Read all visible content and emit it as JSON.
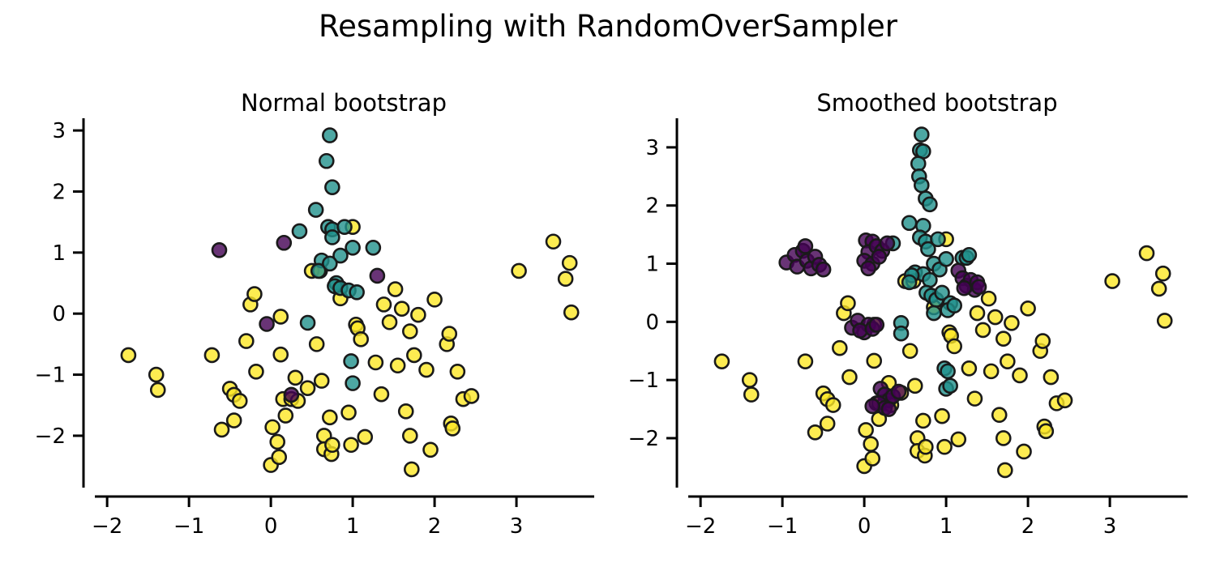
{
  "figure": {
    "suptitle": "Resampling with RandomOverSampler"
  },
  "colors": {
    "class_0": "#440154",
    "class_1": "#21918c",
    "class_2": "#fde725",
    "edge": "#1a1a1a"
  },
  "chart_data": [
    {
      "type": "scatter",
      "title": "Normal bootstrap",
      "xlabel": "",
      "ylabel": "",
      "xlim": [
        -2.15,
        3.95
      ],
      "ylim": [
        -2.85,
        3.2
      ],
      "xticks": [
        -2,
        -1,
        0,
        1,
        2,
        3
      ],
      "yticks": [
        -2,
        -1,
        0,
        1,
        2,
        3
      ],
      "xtick_labels": [
        "−2",
        "−1",
        "0",
        "1",
        "2",
        "3"
      ],
      "ytick_labels": [
        "−2",
        "−1",
        "0",
        "1",
        "2",
        "3"
      ],
      "grid": false,
      "legend": "none",
      "series": [
        {
          "class": 2,
          "color": "#fde725",
          "points": [
            [
              -1.74,
              -0.68
            ],
            [
              -1.4,
              -1.0
            ],
            [
              -1.38,
              -1.25
            ],
            [
              -0.72,
              -0.68
            ],
            [
              -0.6,
              -1.9
            ],
            [
              -0.5,
              -1.23
            ],
            [
              -0.45,
              -1.33
            ],
            [
              -0.38,
              -1.43
            ],
            [
              -0.45,
              -1.75
            ],
            [
              -0.3,
              -0.45
            ],
            [
              -0.25,
              0.15
            ],
            [
              -0.2,
              0.32
            ],
            [
              -0.18,
              -0.95
            ],
            [
              0.02,
              -1.86
            ],
            [
              0.0,
              -2.48
            ],
            [
              0.08,
              -2.1
            ],
            [
              0.1,
              -2.35
            ],
            [
              0.12,
              -0.67
            ],
            [
              0.12,
              -0.05
            ],
            [
              0.15,
              -1.4
            ],
            [
              0.18,
              -1.67
            ],
            [
              0.25,
              -1.4
            ],
            [
              0.3,
              -1.05
            ],
            [
              0.33,
              -1.43
            ],
            [
              0.45,
              -1.22
            ],
            [
              0.5,
              0.7
            ],
            [
              0.56,
              -0.5
            ],
            [
              0.6,
              0.7
            ],
            [
              0.62,
              -1.1
            ],
            [
              0.65,
              -2.0
            ],
            [
              0.65,
              -2.22
            ],
            [
              0.72,
              -1.7
            ],
            [
              0.74,
              -2.3
            ],
            [
              0.75,
              -2.15
            ],
            [
              0.85,
              0.25
            ],
            [
              0.95,
              -1.62
            ],
            [
              0.98,
              -2.15
            ],
            [
              1.0,
              1.42
            ],
            [
              1.04,
              -0.18
            ],
            [
              1.06,
              -0.24
            ],
            [
              1.1,
              -0.42
            ],
            [
              1.15,
              -2.02
            ],
            [
              1.28,
              -0.8
            ],
            [
              1.35,
              -1.32
            ],
            [
              1.38,
              0.15
            ],
            [
              1.45,
              -0.14
            ],
            [
              1.55,
              -0.85
            ],
            [
              1.52,
              0.4
            ],
            [
              1.6,
              0.08
            ],
            [
              1.65,
              -1.6
            ],
            [
              1.7,
              -0.29
            ],
            [
              1.7,
              -2.0
            ],
            [
              1.75,
              -0.68
            ],
            [
              1.72,
              -2.55
            ],
            [
              1.8,
              -0.02
            ],
            [
              1.9,
              -0.92
            ],
            [
              1.95,
              -2.23
            ],
            [
              2.0,
              0.23
            ],
            [
              2.15,
              -0.5
            ],
            [
              2.18,
              -0.33
            ],
            [
              2.2,
              -1.8
            ],
            [
              2.22,
              -1.88
            ],
            [
              2.28,
              -0.95
            ],
            [
              2.35,
              -1.4
            ],
            [
              2.45,
              -1.35
            ],
            [
              3.03,
              0.7
            ],
            [
              3.45,
              1.18
            ],
            [
              3.6,
              0.57
            ],
            [
              3.65,
              0.83
            ],
            [
              3.67,
              0.02
            ]
          ]
        },
        {
          "class": 1,
          "color": "#21918c",
          "points": [
            [
              0.72,
              2.92
            ],
            [
              0.68,
              2.5
            ],
            [
              0.75,
              2.07
            ],
            [
              0.55,
              1.7
            ],
            [
              0.35,
              1.35
            ],
            [
              0.7,
              1.42
            ],
            [
              0.75,
              1.38
            ],
            [
              0.9,
              1.42
            ],
            [
              0.75,
              1.25
            ],
            [
              0.85,
              0.95
            ],
            [
              0.62,
              0.87
            ],
            [
              0.72,
              0.82
            ],
            [
              0.58,
              0.7
            ],
            [
              0.8,
              0.5
            ],
            [
              0.78,
              0.45
            ],
            [
              0.85,
              0.42
            ],
            [
              0.95,
              0.38
            ],
            [
              1.0,
              1.08
            ],
            [
              1.05,
              0.35
            ],
            [
              1.25,
              1.08
            ],
            [
              0.45,
              -0.15
            ],
            [
              0.98,
              -0.78
            ],
            [
              1.0,
              -1.14
            ]
          ]
        },
        {
          "class": 0,
          "color": "#440154",
          "points": [
            [
              -0.63,
              1.04
            ],
            [
              0.16,
              1.16
            ],
            [
              1.3,
              0.62
            ],
            [
              -0.05,
              -0.17
            ],
            [
              0.25,
              -1.33
            ]
          ]
        }
      ]
    },
    {
      "type": "scatter",
      "title": "Smoothed bootstrap",
      "xlabel": "",
      "ylabel": "",
      "xlim": [
        -2.15,
        3.95
      ],
      "ylim": [
        -2.85,
        3.5
      ],
      "xticks": [
        -2,
        -1,
        0,
        1,
        2,
        3
      ],
      "yticks": [
        -2,
        -1,
        0,
        1,
        2,
        3
      ],
      "xtick_labels": [
        "−2",
        "−1",
        "0",
        "1",
        "2",
        "3"
      ],
      "ytick_labels": [
        "−2",
        "−1",
        "0",
        "1",
        "2",
        "3"
      ],
      "grid": false,
      "legend": "none",
      "series": [
        {
          "class": 2,
          "color": "#fde725",
          "points": [
            [
              -1.74,
              -0.68
            ],
            [
              -1.4,
              -1.0
            ],
            [
              -1.38,
              -1.25
            ],
            [
              -0.72,
              -0.68
            ],
            [
              -0.6,
              -1.9
            ],
            [
              -0.5,
              -1.23
            ],
            [
              -0.45,
              -1.33
            ],
            [
              -0.38,
              -1.43
            ],
            [
              -0.45,
              -1.75
            ],
            [
              -0.3,
              -0.45
            ],
            [
              -0.25,
              0.15
            ],
            [
              -0.2,
              0.32
            ],
            [
              -0.18,
              -0.95
            ],
            [
              0.02,
              -1.86
            ],
            [
              0.0,
              -2.48
            ],
            [
              0.08,
              -2.1
            ],
            [
              0.1,
              -2.35
            ],
            [
              0.12,
              -0.67
            ],
            [
              0.12,
              -0.05
            ],
            [
              0.15,
              -1.4
            ],
            [
              0.18,
              -1.67
            ],
            [
              0.25,
              -1.4
            ],
            [
              0.3,
              -1.05
            ],
            [
              0.33,
              -1.43
            ],
            [
              0.45,
              -1.22
            ],
            [
              0.5,
              0.7
            ],
            [
              0.56,
              -0.5
            ],
            [
              0.6,
              0.7
            ],
            [
              0.62,
              -1.1
            ],
            [
              0.65,
              -2.0
            ],
            [
              0.65,
              -2.22
            ],
            [
              0.72,
              -1.7
            ],
            [
              0.74,
              -2.3
            ],
            [
              0.75,
              -2.15
            ],
            [
              0.85,
              0.25
            ],
            [
              0.95,
              -1.62
            ],
            [
              0.98,
              -2.15
            ],
            [
              1.0,
              1.42
            ],
            [
              1.04,
              -0.18
            ],
            [
              1.06,
              -0.24
            ],
            [
              1.1,
              -0.42
            ],
            [
              1.15,
              -2.02
            ],
            [
              1.28,
              -0.8
            ],
            [
              1.35,
              -1.32
            ],
            [
              1.38,
              0.15
            ],
            [
              1.45,
              -0.14
            ],
            [
              1.55,
              -0.85
            ],
            [
              1.52,
              0.4
            ],
            [
              1.6,
              0.08
            ],
            [
              1.65,
              -1.6
            ],
            [
              1.7,
              -0.29
            ],
            [
              1.7,
              -2.0
            ],
            [
              1.75,
              -0.68
            ],
            [
              1.72,
              -2.55
            ],
            [
              1.8,
              -0.02
            ],
            [
              1.9,
              -0.92
            ],
            [
              1.95,
              -2.23
            ],
            [
              2.0,
              0.23
            ],
            [
              2.15,
              -0.5
            ],
            [
              2.18,
              -0.33
            ],
            [
              2.2,
              -1.8
            ],
            [
              2.22,
              -1.88
            ],
            [
              2.28,
              -0.95
            ],
            [
              2.35,
              -1.4
            ],
            [
              2.45,
              -1.35
            ],
            [
              3.03,
              0.7
            ],
            [
              3.45,
              1.18
            ],
            [
              3.6,
              0.57
            ],
            [
              3.65,
              0.83
            ],
            [
              3.67,
              0.02
            ]
          ]
        },
        {
          "class": 1,
          "color": "#21918c",
          "points": [
            [
              0.7,
              3.22
            ],
            [
              0.68,
              2.95
            ],
            [
              0.72,
              2.93
            ],
            [
              0.66,
              2.72
            ],
            [
              0.67,
              2.5
            ],
            [
              0.7,
              2.35
            ],
            [
              0.75,
              2.12
            ],
            [
              0.8,
              2.02
            ],
            [
              0.55,
              1.7
            ],
            [
              0.72,
              1.65
            ],
            [
              0.35,
              1.35
            ],
            [
              0.68,
              1.45
            ],
            [
              0.75,
              1.38
            ],
            [
              0.9,
              1.42
            ],
            [
              0.78,
              1.25
            ],
            [
              0.85,
              1.0
            ],
            [
              0.92,
              0.9
            ],
            [
              0.62,
              0.85
            ],
            [
              0.72,
              0.82
            ],
            [
              0.58,
              0.8
            ],
            [
              0.55,
              0.68
            ],
            [
              0.8,
              0.72
            ],
            [
              0.76,
              0.5
            ],
            [
              0.82,
              0.45
            ],
            [
              0.88,
              0.38
            ],
            [
              0.95,
              0.5
            ],
            [
              1.0,
              1.08
            ],
            [
              1.05,
              0.32
            ],
            [
              1.02,
              0.2
            ],
            [
              1.1,
              0.28
            ],
            [
              1.2,
              1.1
            ],
            [
              1.25,
              1.1
            ],
            [
              1.28,
              1.15
            ],
            [
              0.85,
              0.15
            ],
            [
              0.45,
              -0.02
            ],
            [
              0.45,
              -0.2
            ],
            [
              0.98,
              -0.8
            ],
            [
              1.02,
              -0.85
            ],
            [
              1.0,
              -1.15
            ],
            [
              1.05,
              -1.1
            ]
          ]
        },
        {
          "class": 0,
          "color": "#440154",
          "points": [
            [
              -0.95,
              1.02
            ],
            [
              -0.85,
              1.15
            ],
            [
              -0.75,
              1.22
            ],
            [
              -0.82,
              0.95
            ],
            [
              -0.7,
              1.05
            ],
            [
              -0.65,
              0.92
            ],
            [
              -0.6,
              1.12
            ],
            [
              -0.55,
              0.98
            ],
            [
              -0.5,
              0.9
            ],
            [
              -0.72,
              1.3
            ],
            [
              0.02,
              1.4
            ],
            [
              0.1,
              1.38
            ],
            [
              0.05,
              1.2
            ],
            [
              0.15,
              1.3
            ],
            [
              0.22,
              1.22
            ],
            [
              0.0,
              1.05
            ],
            [
              0.1,
              1.0
            ],
            [
              0.28,
              1.35
            ],
            [
              0.05,
              0.92
            ],
            [
              0.18,
              1.12
            ],
            [
              1.15,
              0.88
            ],
            [
              1.2,
              0.75
            ],
            [
              1.25,
              0.62
            ],
            [
              1.3,
              0.72
            ],
            [
              1.35,
              0.55
            ],
            [
              1.38,
              0.68
            ],
            [
              1.4,
              0.6
            ],
            [
              1.22,
              0.58
            ],
            [
              -0.15,
              -0.1
            ],
            [
              -0.08,
              0.02
            ],
            [
              0.0,
              -0.18
            ],
            [
              0.05,
              -0.05
            ],
            [
              -0.05,
              -0.15
            ],
            [
              0.1,
              -0.12
            ],
            [
              0.15,
              -0.05
            ],
            [
              0.2,
              -1.15
            ],
            [
              0.25,
              -1.25
            ],
            [
              0.3,
              -1.35
            ],
            [
              0.18,
              -1.4
            ],
            [
              0.25,
              -1.48
            ],
            [
              0.35,
              -1.28
            ],
            [
              0.1,
              -1.45
            ],
            [
              0.42,
              -1.2
            ],
            [
              0.3,
              -1.5
            ]
          ]
        }
      ]
    }
  ]
}
